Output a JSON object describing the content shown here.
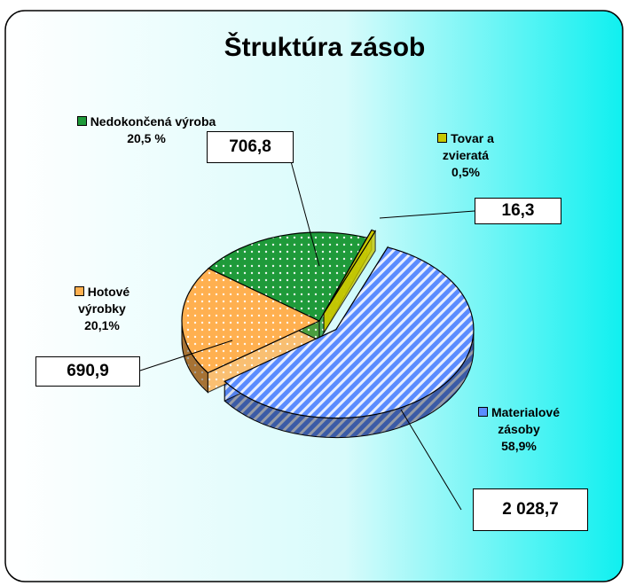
{
  "chart_data": {
    "type": "pie3d",
    "title": "Štruktúra zásob",
    "categories": [
      "Materialové zásoby",
      "Hotové výrobky",
      "Nedokončená výroba",
      "Tovar a zvieratá"
    ],
    "values": [
      2028.7,
      690.9,
      706.8,
      16.3
    ],
    "value_labels": [
      "2 028,7",
      "690,9",
      "706,8",
      "16,3"
    ],
    "percents": [
      58.9,
      20.1,
      20.5,
      0.5
    ],
    "percent_labels": [
      "58,9%",
      "20,1%",
      "20,5 %",
      "0,5%"
    ],
    "colors": [
      "#5b8cff",
      "#ffb050",
      "#1f9a3a",
      "#c8c800"
    ]
  }
}
